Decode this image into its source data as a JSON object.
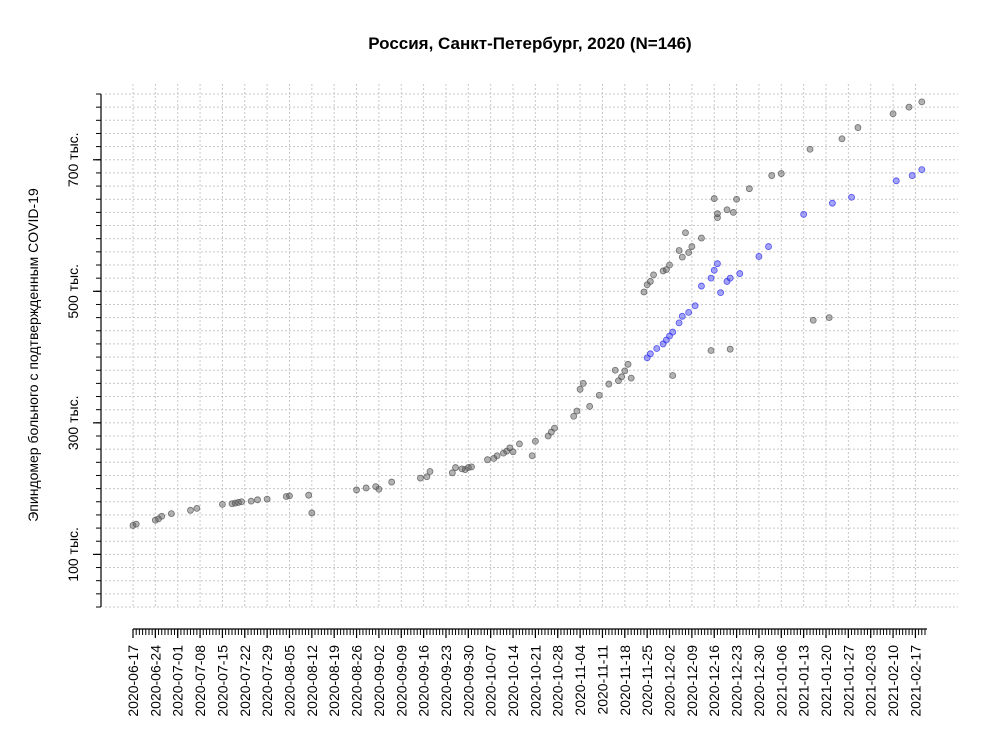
{
  "chart_data": {
    "type": "scatter",
    "title": "Россия, Санкт-Петербург, 2020 (N=146)",
    "xlabel": "",
    "ylabel": "Эпиндомер больного с подтвержденным COVID-19",
    "x_is_date": true,
    "xlim": [
      "2020-06-17",
      "2021-02-20"
    ],
    "ylim": [
      20000,
      800000
    ],
    "y_ticks": [
      {
        "value": 100000,
        "label": "100 тыс."
      },
      {
        "value": 300000,
        "label": "300 тыс."
      },
      {
        "value": 500000,
        "label": "500 тыс."
      },
      {
        "value": 700000,
        "label": "700 тыс."
      }
    ],
    "x_ticks": [
      "2020-06-17",
      "2020-06-24",
      "2020-07-01",
      "2020-07-08",
      "2020-07-15",
      "2020-07-22",
      "2020-07-29",
      "2020-08-05",
      "2020-08-12",
      "2020-08-19",
      "2020-08-26",
      "2020-09-02",
      "2020-09-09",
      "2020-09-16",
      "2020-09-23",
      "2020-09-30",
      "2020-10-07",
      "2020-10-14",
      "2020-10-21",
      "2020-10-28",
      "2020-11-04",
      "2020-11-11",
      "2020-11-18",
      "2020-11-25",
      "2020-12-02",
      "2020-12-09",
      "2020-12-16",
      "2020-12-23",
      "2020-12-30",
      "2021-01-06",
      "2021-01-13",
      "2021-01-20",
      "2021-01-27",
      "2021-02-03",
      "2021-02-10",
      "2021-02-17"
    ],
    "grid": true,
    "series": [
      {
        "color": "#555555",
        "x": [
          "2020-06-17",
          "2020-06-18",
          "2020-06-24",
          "2020-06-25",
          "2020-06-26",
          "2020-06-29",
          "2020-07-05",
          "2020-07-07",
          "2020-07-15",
          "2020-07-18",
          "2020-07-19",
          "2020-07-20",
          "2020-07-21",
          "2020-07-24",
          "2020-07-26",
          "2020-07-29",
          "2020-08-04",
          "2020-08-05",
          "2020-08-11",
          "2020-08-12",
          "2020-08-26",
          "2020-08-29",
          "2020-09-01",
          "2020-09-02",
          "2020-09-06",
          "2020-09-15",
          "2020-09-17",
          "2020-09-18",
          "2020-09-25",
          "2020-09-26",
          "2020-09-28",
          "2020-09-29",
          "2020-09-30",
          "2020-10-01",
          "2020-10-06",
          "2020-10-08",
          "2020-10-09",
          "2020-10-11",
          "2020-10-12",
          "2020-10-13",
          "2020-10-14",
          "2020-10-16",
          "2020-10-20",
          "2020-10-21",
          "2020-10-25",
          "2020-10-26",
          "2020-10-27",
          "2020-11-02",
          "2020-11-03",
          "2020-11-04",
          "2020-11-05",
          "2020-11-07",
          "2020-11-10",
          "2020-11-13",
          "2020-11-15",
          "2020-11-16",
          "2020-11-17",
          "2020-11-18",
          "2020-11-19",
          "2020-11-20",
          "2020-11-24",
          "2020-11-25",
          "2020-11-26",
          "2020-11-27",
          "2020-11-30",
          "2020-12-01",
          "2020-12-02",
          "2020-12-03",
          "2020-12-05",
          "2020-12-06",
          "2020-12-07",
          "2020-12-08",
          "2020-12-09",
          "2020-12-12",
          "2020-12-15",
          "2020-12-16",
          "2020-12-17",
          "2020-12-17",
          "2020-12-20",
          "2020-12-21",
          "2020-12-22",
          "2020-12-23",
          "2020-12-27",
          "2021-01-03",
          "2021-01-06",
          "2021-01-15",
          "2021-01-16",
          "2021-01-21",
          "2021-01-25",
          "2021-01-30",
          "2021-02-10",
          "2021-02-15",
          "2021-02-19"
        ],
        "y": [
          144000,
          146000,
          152000,
          154000,
          158000,
          162000,
          167000,
          170000,
          176000,
          177000,
          178000,
          179000,
          180000,
          181000,
          183000,
          184000,
          188000,
          189000,
          190000,
          163000,
          198000,
          201000,
          203000,
          199000,
          210000,
          216000,
          218000,
          226000,
          224000,
          232000,
          230000,
          229000,
          232000,
          233000,
          244000,
          246000,
          250000,
          254000,
          257000,
          262000,
          256000,
          268000,
          250000,
          272000,
          280000,
          286000,
          292000,
          310000,
          318000,
          351000,
          360000,
          325000,
          342000,
          359000,
          380000,
          364000,
          370000,
          379000,
          389000,
          368000,
          499000,
          510000,
          515000,
          525000,
          531000,
          533000,
          540000,
          372000,
          562000,
          552000,
          589000,
          559000,
          568000,
          581000,
          410000,
          641000,
          618000,
          612000,
          624000,
          412000,
          620000,
          640000,
          656000,
          676000,
          679000,
          716000,
          456000,
          460000,
          732000,
          749000,
          770000,
          780000,
          788000
        ]
      },
      {
        "color": "#3333ee",
        "x": [
          "2020-11-25",
          "2020-11-26",
          "2020-11-28",
          "2020-11-30",
          "2020-12-01",
          "2020-12-02",
          "2020-12-03",
          "2020-12-05",
          "2020-12-06",
          "2020-12-08",
          "2020-12-10",
          "2020-12-12",
          "2020-12-15",
          "2020-12-16",
          "2020-12-17",
          "2020-12-18",
          "2020-12-20",
          "2020-12-21",
          "2020-12-24",
          "2020-12-30",
          "2021-01-02",
          "2021-01-13",
          "2021-01-22",
          "2021-01-28",
          "2021-02-11",
          "2021-02-16",
          "2021-02-19"
        ],
        "y": [
          399000,
          405000,
          413000,
          420000,
          426000,
          432000,
          438000,
          452000,
          462000,
          468000,
          478000,
          508000,
          520000,
          532000,
          542000,
          498000,
          515000,
          520000,
          527000,
          553000,
          568000,
          617000,
          634000,
          643000,
          668000,
          676000,
          685000
        ]
      }
    ]
  }
}
